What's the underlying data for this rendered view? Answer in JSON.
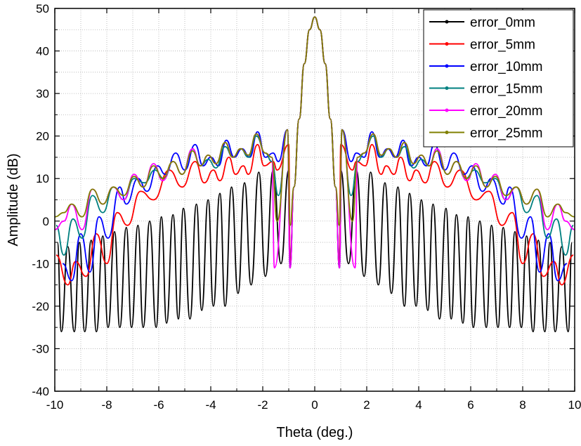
{
  "chart_data": {
    "type": "line",
    "title": "",
    "xlabel": "Theta (deg.)",
    "ylabel": "Amplitude (dB)",
    "xlim": [
      -10,
      10
    ],
    "ylim": [
      -40,
      50
    ],
    "xticks": [
      -10,
      -8,
      -6,
      -4,
      -2,
      0,
      2,
      4,
      6,
      8,
      10
    ],
    "xtick_labels": [
      "-10",
      "-8",
      "-6",
      "-4",
      "-2",
      "0",
      "2",
      "4",
      "6",
      "8",
      "10"
    ],
    "yticks": [
      -40,
      -30,
      -20,
      -10,
      0,
      10,
      20,
      30,
      40,
      50
    ],
    "ytick_labels": [
      "-40",
      "-30",
      "-20",
      "-10",
      "0",
      "10",
      "20",
      "30",
      "40",
      "50"
    ],
    "grid": true,
    "legend_position": "top-right",
    "symmetric_about_zero": true,
    "series": [
      {
        "name": "error_0mm",
        "color": "#000000",
        "peak": 48,
        "sidelobes_half": [
          [
            1.0,
            12
          ],
          [
            1.6,
            12
          ],
          [
            2.15,
            11.5
          ],
          [
            2.7,
            9
          ],
          [
            3.2,
            8
          ],
          [
            3.65,
            6.5
          ],
          [
            4.1,
            5
          ],
          [
            4.55,
            4
          ],
          [
            5.05,
            3
          ],
          [
            5.45,
            1.5
          ],
          [
            5.9,
            1
          ],
          [
            6.35,
            0
          ],
          [
            6.8,
            -1
          ],
          [
            7.25,
            -1.5
          ],
          [
            7.7,
            -2.5
          ],
          [
            8.15,
            -3.5
          ],
          [
            8.6,
            -4.5
          ],
          [
            9.05,
            -5
          ],
          [
            9.5,
            -6
          ],
          [
            9.9,
            -5
          ]
        ],
        "nulls_half": [
          [
            0.95,
            -10
          ],
          [
            1.3,
            -10
          ],
          [
            1.9,
            -13
          ],
          [
            2.45,
            -15
          ],
          [
            2.95,
            -17
          ],
          [
            3.45,
            -20
          ],
          [
            3.9,
            -20
          ],
          [
            4.35,
            -21
          ],
          [
            4.8,
            -23
          ],
          [
            5.25,
            -23
          ],
          [
            5.7,
            -24
          ],
          [
            6.1,
            -25
          ],
          [
            6.6,
            -25
          ],
          [
            7.05,
            -25
          ],
          [
            7.5,
            -25
          ],
          [
            7.95,
            -25
          ],
          [
            8.4,
            -26
          ],
          [
            8.85,
            -26
          ],
          [
            9.25,
            -26
          ],
          [
            9.75,
            -26
          ]
        ]
      },
      {
        "name": "error_5mm",
        "color": "#ff0000",
        "peak": 48,
        "sidelobes_half": [
          [
            1.0,
            18
          ],
          [
            1.6,
            14
          ],
          [
            2.2,
            18
          ],
          [
            2.75,
            13
          ],
          [
            3.3,
            15
          ],
          [
            3.9,
            12
          ],
          [
            4.6,
            14
          ],
          [
            5.6,
            12
          ],
          [
            6.7,
            7
          ],
          [
            7.6,
            2
          ],
          [
            8.4,
            -3
          ],
          [
            9.2,
            -9.5
          ],
          [
            9.95,
            -8
          ]
        ],
        "nulls_half": [
          [
            0.95,
            -11
          ],
          [
            1.45,
            12
          ],
          [
            1.95,
            13
          ],
          [
            2.55,
            11
          ],
          [
            3.05,
            11
          ],
          [
            3.65,
            9.5
          ],
          [
            4.25,
            9
          ],
          [
            5.1,
            8
          ],
          [
            6.2,
            5
          ],
          [
            7.2,
            -1
          ],
          [
            8.0,
            -10
          ],
          [
            8.8,
            -13
          ],
          [
            9.5,
            -15
          ]
        ]
      },
      {
        "name": "error_10mm",
        "color": "#0000ff",
        "peak": 48,
        "sidelobes_half": [
          [
            1.05,
            21.5
          ],
          [
            1.6,
            16
          ],
          [
            2.2,
            21
          ],
          [
            2.8,
            17
          ],
          [
            3.4,
            19
          ],
          [
            4.0,
            15
          ],
          [
            4.6,
            18
          ],
          [
            5.35,
            16
          ],
          [
            6.05,
            13
          ],
          [
            6.8,
            10
          ],
          [
            7.5,
            8
          ],
          [
            8.3,
            1
          ],
          [
            9.0,
            -3
          ],
          [
            9.7,
            -10
          ]
        ],
        "nulls_half": [
          [
            0.95,
            -11
          ],
          [
            1.4,
            14
          ],
          [
            1.9,
            15
          ],
          [
            2.5,
            15
          ],
          [
            3.1,
            15
          ],
          [
            3.7,
            13
          ],
          [
            4.3,
            13
          ],
          [
            5.0,
            12
          ],
          [
            5.75,
            11
          ],
          [
            6.45,
            7
          ],
          [
            7.25,
            4
          ],
          [
            7.95,
            -4
          ],
          [
            8.65,
            -12
          ],
          [
            9.35,
            -14
          ]
        ]
      },
      {
        "name": "error_15mm",
        "color": "#008080",
        "peak": 48,
        "sidelobes_half": [
          [
            1.05,
            21.5
          ],
          [
            1.65,
            14
          ],
          [
            2.25,
            20
          ],
          [
            2.85,
            17
          ],
          [
            3.45,
            17.5
          ],
          [
            4.1,
            14.5
          ],
          [
            4.7,
            17
          ],
          [
            5.45,
            14
          ],
          [
            6.15,
            12
          ],
          [
            6.95,
            10
          ],
          [
            7.75,
            8
          ],
          [
            8.55,
            6
          ],
          [
            9.3,
            0.5
          ],
          [
            9.95,
            -1
          ]
        ],
        "nulls_half": [
          [
            0.95,
            -11
          ],
          [
            1.4,
            6
          ],
          [
            1.9,
            16
          ],
          [
            2.55,
            15
          ],
          [
            3.15,
            15
          ],
          [
            3.8,
            12.5
          ],
          [
            4.4,
            13
          ],
          [
            5.1,
            11
          ],
          [
            5.8,
            10
          ],
          [
            6.55,
            9
          ],
          [
            7.35,
            5
          ],
          [
            8.15,
            2
          ],
          [
            8.95,
            -4
          ],
          [
            9.65,
            -8
          ]
        ]
      },
      {
        "name": "error_20mm",
        "color": "#ff00ff",
        "peak": 48,
        "sidelobes_half": [
          [
            1.05,
            21.5
          ],
          [
            1.65,
            15
          ],
          [
            2.25,
            20.5
          ],
          [
            2.85,
            17
          ],
          [
            3.45,
            18.5
          ],
          [
            4.1,
            15.5
          ],
          [
            4.7,
            17
          ],
          [
            5.45,
            14
          ],
          [
            6.2,
            13.5
          ],
          [
            6.95,
            11
          ],
          [
            7.75,
            8
          ],
          [
            8.55,
            7.5
          ],
          [
            9.35,
            4
          ],
          [
            10.0,
            -2
          ]
        ],
        "nulls_half": [
          [
            0.95,
            -11
          ],
          [
            1.55,
            -11
          ],
          [
            1.9,
            16
          ],
          [
            2.55,
            15.5
          ],
          [
            3.15,
            15
          ],
          [
            3.8,
            13.5
          ],
          [
            4.4,
            13
          ],
          [
            5.1,
            11
          ],
          [
            5.85,
            9.5
          ],
          [
            6.6,
            8
          ],
          [
            7.35,
            5
          ],
          [
            8.15,
            4
          ],
          [
            8.95,
            -2
          ],
          [
            9.65,
            0
          ]
        ]
      },
      {
        "name": "error_25mm",
        "color": "#808000",
        "peak": 48,
        "sidelobes_half": [
          [
            1.05,
            21.5
          ],
          [
            1.65,
            15
          ],
          [
            2.25,
            20.5
          ],
          [
            2.85,
            17
          ],
          [
            3.45,
            18.5
          ],
          [
            4.1,
            15.5
          ],
          [
            4.7,
            16.5
          ],
          [
            5.45,
            14
          ],
          [
            6.2,
            13
          ],
          [
            6.95,
            10.5
          ],
          [
            7.75,
            8
          ],
          [
            8.55,
            7.5
          ],
          [
            9.35,
            4
          ],
          [
            10.0,
            1
          ]
        ],
        "nulls_half": [
          [
            0.95,
            -1
          ],
          [
            1.45,
            0
          ],
          [
            1.9,
            16
          ],
          [
            2.55,
            15.5
          ],
          [
            3.15,
            15
          ],
          [
            3.8,
            13.5
          ],
          [
            4.4,
            13
          ],
          [
            5.1,
            11
          ],
          [
            5.85,
            10
          ],
          [
            6.6,
            8
          ],
          [
            7.35,
            6
          ],
          [
            8.15,
            4
          ],
          [
            8.95,
            1
          ],
          [
            9.65,
            2
          ]
        ]
      }
    ]
  }
}
